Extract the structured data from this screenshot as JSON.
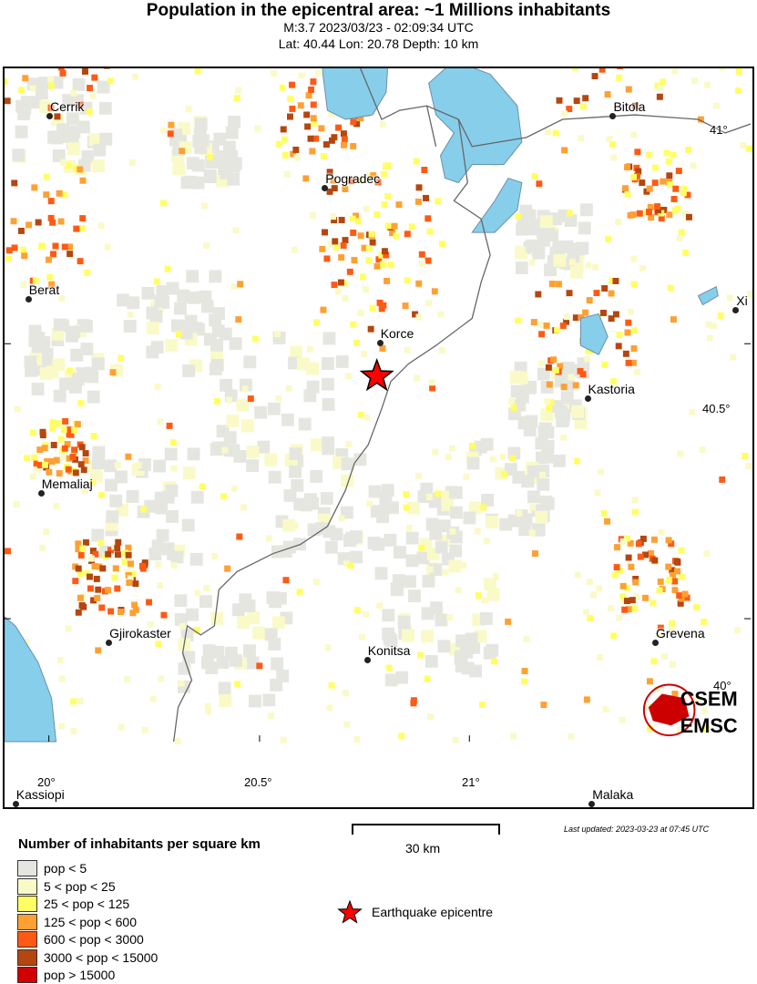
{
  "header": {
    "title": "Population in the epicentral area: ~1 Millions inhabitants",
    "subtitle1": "M:3.7 2023/03/23 - 02:09:34 UTC",
    "subtitle2": "Lat: 40.44 Lon: 20.78 Depth: 10 km"
  },
  "map": {
    "cities": [
      {
        "name": "Cerrik",
        "lat": 41.03,
        "lon": 20.0
      },
      {
        "name": "Pogradec",
        "lat": 40.9,
        "lon": 20.65
      },
      {
        "name": "Bitola",
        "lat": 41.03,
        "lon": 21.33
      },
      {
        "name": "Berat",
        "lat": 40.7,
        "lon": 19.95
      },
      {
        "name": "Xi",
        "lat": 40.68,
        "lon": 21.62
      },
      {
        "name": "Korce",
        "lat": 40.62,
        "lon": 20.78
      },
      {
        "name": "Kastoria",
        "lat": 40.52,
        "lon": 21.27
      },
      {
        "name": "Memaliaj",
        "lat": 40.35,
        "lon": 19.98
      },
      {
        "name": "Gjirokaster",
        "lat": 40.08,
        "lon": 20.14
      },
      {
        "name": "Konitsa",
        "lat": 40.05,
        "lon": 20.75
      },
      {
        "name": "Grevena",
        "lat": 40.08,
        "lon": 21.43
      },
      {
        "name": "Kassiopi",
        "lat": 39.79,
        "lon": 19.92
      },
      {
        "name": "Malaka",
        "lat": 39.79,
        "lon": 21.28
      }
    ],
    "lat_labels": [
      "41°",
      "40.5°",
      "40°"
    ],
    "lon_labels": [
      "20°",
      "20.5°",
      "21°"
    ],
    "epicentre": {
      "lat": 40.44,
      "lon": 20.78
    },
    "colors": {
      "water": "#87ceeb",
      "border": "#666666",
      "epicentre": "#ff0000"
    },
    "logo": "CSEM EMSC"
  },
  "legend": {
    "title": "Number of inhabitants per square km",
    "classes": [
      {
        "label": "pop < 5",
        "color": "#e6e6e1"
      },
      {
        "label": "5 < pop < 25",
        "color": "#fafac8"
      },
      {
        "label": "25 < pop < 125",
        "color": "#ffff64"
      },
      {
        "label": "125 < pop < 600",
        "color": "#ffa032"
      },
      {
        "label": "600 < pop < 3000",
        "color": "#ff5a14"
      },
      {
        "label": "3000 < pop < 15000",
        "color": "#b4460f"
      },
      {
        "label": "pop > 15000",
        "color": "#d20000"
      }
    ],
    "epicentre_label": "Earthquake epicentre"
  },
  "scale": {
    "label": "30 km"
  },
  "updated": "Last updated: 2023-03-23 at 07:45 UTC"
}
